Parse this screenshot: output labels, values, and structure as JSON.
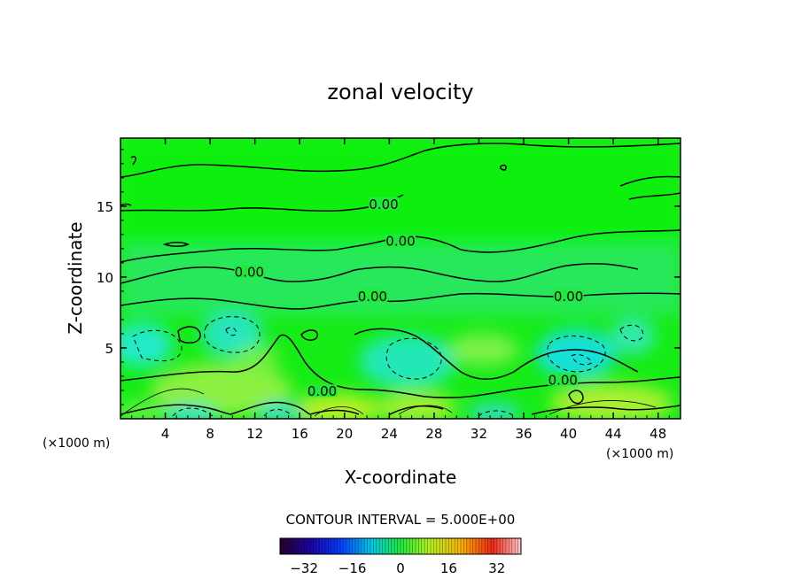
{
  "chart_data": {
    "type": "heatmap",
    "title": "zonal velocity",
    "xlabel": "X-coordinate",
    "ylabel": "Z-coordinate",
    "x_unit_label": "(×1000 m)",
    "xlim": [
      0,
      50
    ],
    "ylim": [
      0,
      19.8
    ],
    "x_ticks": [
      4,
      8,
      12,
      16,
      20,
      24,
      28,
      32,
      36,
      40,
      44,
      48
    ],
    "y_ticks": [
      5,
      10,
      15
    ],
    "contour_interval_text": "CONTOUR INTERVAL = 5.000E+00",
    "contour_labels": [
      {
        "text": "0.00",
        "x": 23.5,
        "z": 15.0
      },
      {
        "text": "0.00",
        "x": 25.0,
        "z": 12.4
      },
      {
        "text": "0.00",
        "x": 11.5,
        "z": 10.2
      },
      {
        "text": "0.00",
        "x": 22.5,
        "z": 8.5
      },
      {
        "text": "0.00",
        "x": 40.0,
        "z": 8.5
      },
      {
        "text": "0.00",
        "x": 18.0,
        "z": 1.8
      },
      {
        "text": "0.00",
        "x": 39.5,
        "z": 2.6
      }
    ],
    "colorbar": {
      "range": [
        -40,
        40
      ],
      "ticks": [
        -32,
        -16,
        0,
        16,
        32
      ],
      "tick_labels": [
        "−32",
        "−16",
        "0",
        "16",
        "32"
      ]
    }
  }
}
